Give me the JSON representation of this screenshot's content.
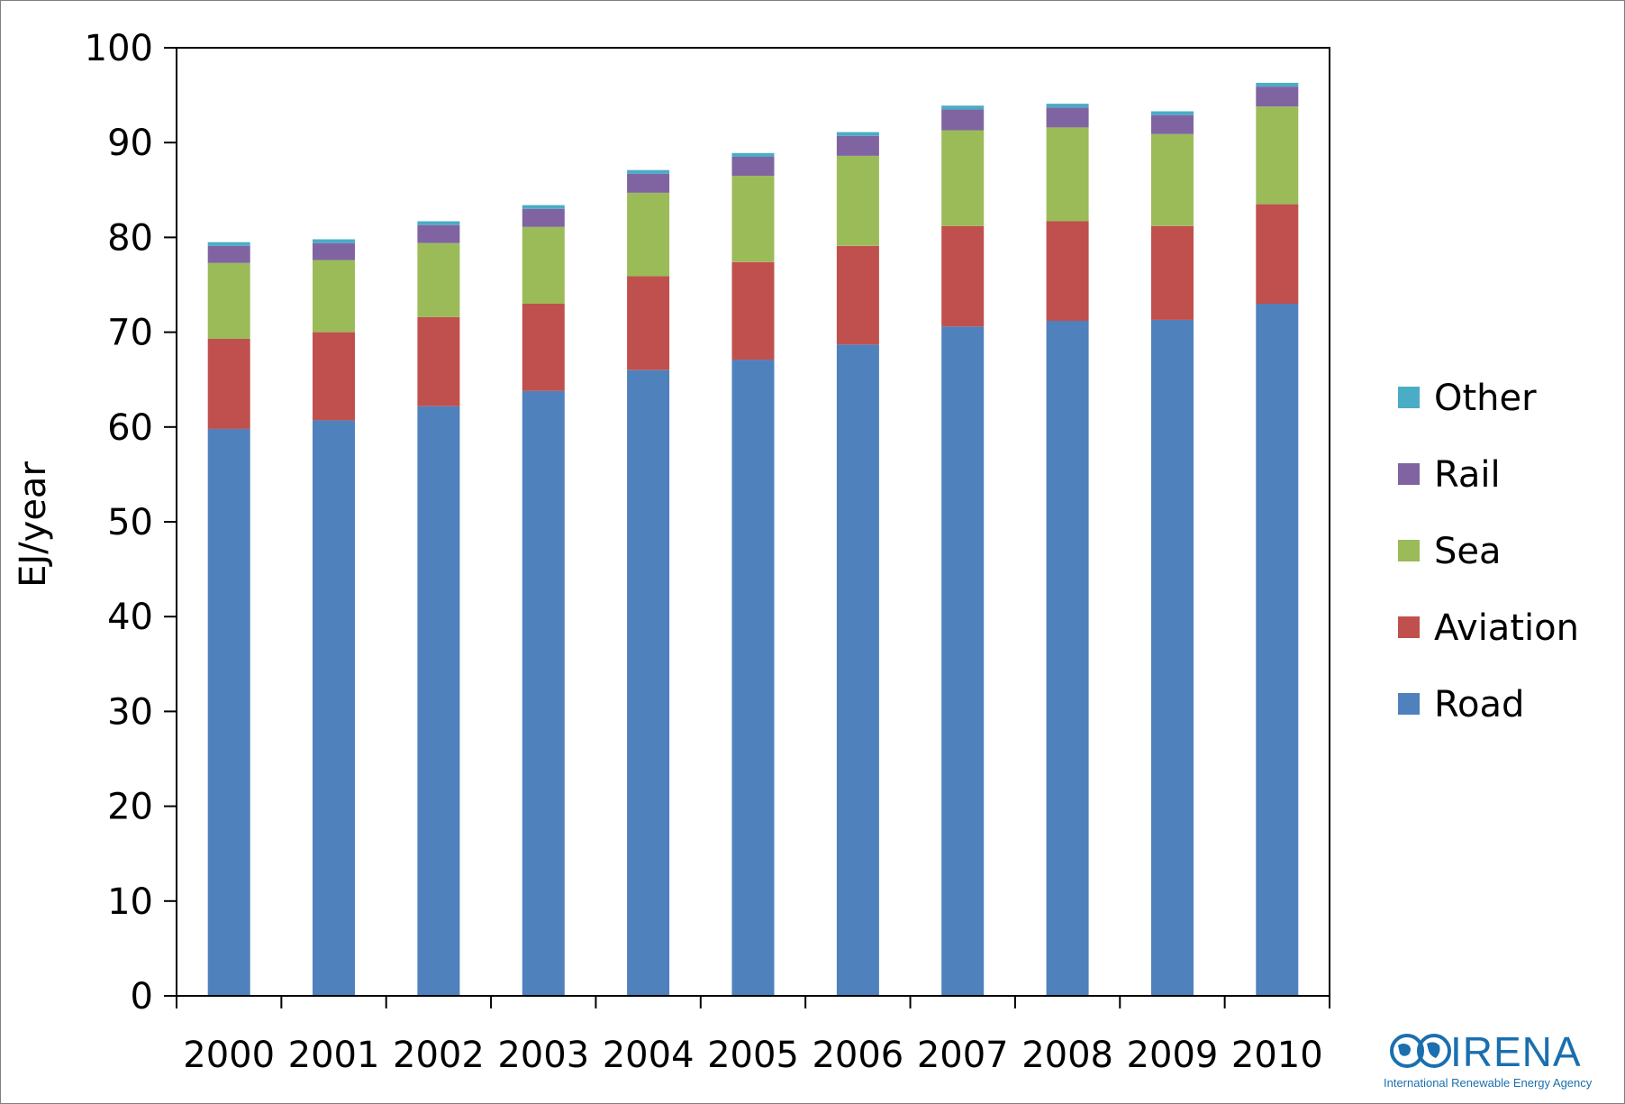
{
  "chart_data": {
    "type": "bar",
    "stacked": true,
    "title": "",
    "xlabel": "",
    "ylabel": "EJ/year",
    "ylim": [
      0,
      100
    ],
    "yticks": [
      0,
      10,
      20,
      30,
      40,
      50,
      60,
      70,
      80,
      90,
      100
    ],
    "grid": false,
    "legend_position": "right",
    "categories": [
      "2000",
      "2001",
      "2002",
      "2003",
      "2004",
      "2005",
      "2006",
      "2007",
      "2008",
      "2009",
      "2010"
    ],
    "series": [
      {
        "name": "Road",
        "color": "#4f81bd",
        "values": [
          59.8,
          60.7,
          62.2,
          63.8,
          66.0,
          67.1,
          68.7,
          70.6,
          71.2,
          71.3,
          73.0
        ]
      },
      {
        "name": "Aviation",
        "color": "#c0504d",
        "values": [
          9.5,
          9.3,
          9.4,
          9.2,
          9.9,
          10.3,
          10.4,
          10.6,
          10.5,
          9.9,
          10.5
        ]
      },
      {
        "name": "Sea",
        "color": "#9bbb59",
        "values": [
          8.0,
          7.6,
          7.8,
          8.1,
          8.8,
          9.1,
          9.5,
          10.1,
          9.9,
          9.7,
          10.3
        ]
      },
      {
        "name": "Rail",
        "color": "#8064a2",
        "values": [
          1.8,
          1.8,
          1.9,
          1.9,
          2.0,
          2.0,
          2.1,
          2.2,
          2.1,
          2.0,
          2.1
        ]
      },
      {
        "name": "Other",
        "color": "#4bacc6",
        "values": [
          0.4,
          0.4,
          0.4,
          0.4,
          0.4,
          0.4,
          0.4,
          0.4,
          0.4,
          0.4,
          0.4
        ]
      }
    ]
  },
  "logo": {
    "text": "IRENA",
    "tagline": "International Renewable Energy Agency",
    "color": "#1a6faf"
  }
}
